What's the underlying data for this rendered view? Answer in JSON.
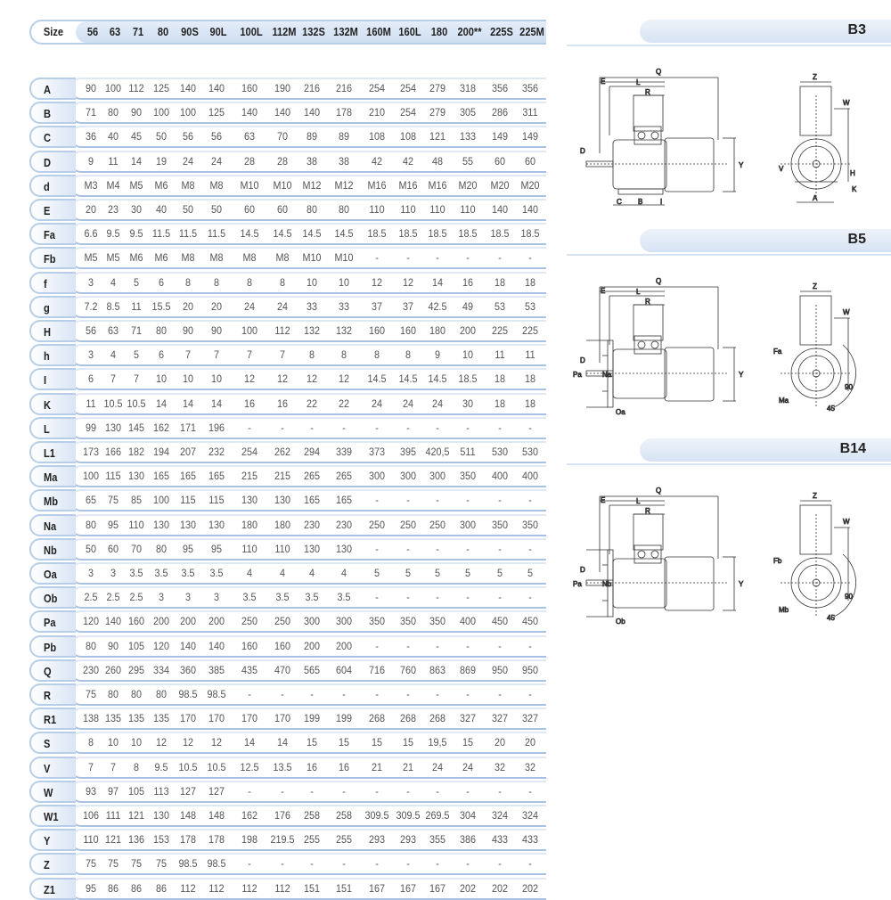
{
  "table": {
    "size_label": "Size",
    "sizes": [
      "56",
      "63",
      "71",
      "80",
      "90S",
      "90L",
      "100L",
      "112M",
      "132S",
      "132M",
      "160M",
      "160L",
      "180",
      "200**",
      "225S",
      "225M"
    ],
    "rows": [
      {
        "label": "A",
        "values": [
          "90",
          "100",
          "112",
          "125",
          "140",
          "140",
          "160",
          "190",
          "216",
          "216",
          "254",
          "254",
          "279",
          "318",
          "356",
          "356"
        ]
      },
      {
        "label": "B",
        "values": [
          "71",
          "80",
          "90",
          "100",
          "100",
          "125",
          "140",
          "140",
          "140",
          "178",
          "210",
          "254",
          "279",
          "305",
          "286",
          "311"
        ]
      },
      {
        "label": "C",
        "values": [
          "36",
          "40",
          "45",
          "50",
          "56",
          "56",
          "63",
          "70",
          "89",
          "89",
          "108",
          "108",
          "121",
          "133",
          "149",
          "149"
        ]
      },
      {
        "label": "D",
        "values": [
          "9",
          "11",
          "14",
          "19",
          "24",
          "24",
          "28",
          "28",
          "38",
          "38",
          "42",
          "42",
          "48",
          "55",
          "60",
          "60"
        ]
      },
      {
        "label": "d",
        "values": [
          "M3",
          "M4",
          "M5",
          "M6",
          "M8",
          "M8",
          "M10",
          "M10",
          "M12",
          "M12",
          "M16",
          "M16",
          "M16",
          "M20",
          "M20",
          "M20"
        ]
      },
      {
        "label": "E",
        "values": [
          "20",
          "23",
          "30",
          "40",
          "50",
          "50",
          "60",
          "60",
          "80",
          "80",
          "110",
          "110",
          "110",
          "110",
          "140",
          "140"
        ]
      },
      {
        "label": "Fa",
        "values": [
          "6.6",
          "9.5",
          "9.5",
          "11.5",
          "11.5",
          "11.5",
          "14.5",
          "14.5",
          "14.5",
          "14.5",
          "18.5",
          "18.5",
          "18.5",
          "18.5",
          "18.5",
          "18.5"
        ]
      },
      {
        "label": "Fb",
        "values": [
          "M5",
          "M5",
          "M6",
          "M6",
          "M8",
          "M8",
          "M8",
          "M8",
          "M10",
          "M10",
          "-",
          "-",
          "-",
          "-",
          "-",
          "-"
        ]
      },
      {
        "label": "f",
        "values": [
          "3",
          "4",
          "5",
          "6",
          "8",
          "8",
          "8",
          "8",
          "10",
          "10",
          "12",
          "12",
          "14",
          "16",
          "18",
          "18"
        ]
      },
      {
        "label": "g",
        "values": [
          "7.2",
          "8.5",
          "11",
          "15.5",
          "20",
          "20",
          "24",
          "24",
          "33",
          "33",
          "37",
          "37",
          "42.5",
          "49",
          "53",
          "53"
        ]
      },
      {
        "label": "H",
        "values": [
          "56",
          "63",
          "71",
          "80",
          "90",
          "90",
          "100",
          "112",
          "132",
          "132",
          "160",
          "160",
          "180",
          "200",
          "225",
          "225"
        ]
      },
      {
        "label": "h",
        "values": [
          "3",
          "4",
          "5",
          "6",
          "7",
          "7",
          "7",
          "7",
          "8",
          "8",
          "8",
          "8",
          "9",
          "10",
          "11",
          "11"
        ]
      },
      {
        "label": "I",
        "values": [
          "6",
          "7",
          "7",
          "10",
          "10",
          "10",
          "12",
          "12",
          "12",
          "12",
          "14.5",
          "14.5",
          "14.5",
          "18.5",
          "18",
          "18"
        ]
      },
      {
        "label": "K",
        "values": [
          "11",
          "10.5",
          "10.5",
          "14",
          "14",
          "14",
          "16",
          "16",
          "22",
          "22",
          "24",
          "24",
          "24",
          "30",
          "18",
          "18"
        ]
      },
      {
        "label": "L",
        "values": [
          "99",
          "130",
          "145",
          "162",
          "171",
          "196",
          "-",
          "-",
          "-",
          "-",
          "-",
          "-",
          "-",
          "-",
          "-",
          "-"
        ]
      },
      {
        "label": "L1",
        "values": [
          "173",
          "166",
          "182",
          "194",
          "207",
          "232",
          "254",
          "262",
          "294",
          "339",
          "373",
          "395",
          "420,5",
          "511",
          "530",
          "530"
        ]
      },
      {
        "label": "Ma",
        "values": [
          "100",
          "115",
          "130",
          "165",
          "165",
          "165",
          "215",
          "215",
          "265",
          "265",
          "300",
          "300",
          "300",
          "350",
          "400",
          "400"
        ]
      },
      {
        "label": "Mb",
        "values": [
          "65",
          "75",
          "85",
          "100",
          "115",
          "115",
          "130",
          "130",
          "165",
          "165",
          "-",
          "-",
          "-",
          "-",
          "-",
          "-"
        ]
      },
      {
        "label": "Na",
        "values": [
          "80",
          "95",
          "110",
          "130",
          "130",
          "130",
          "180",
          "180",
          "230",
          "230",
          "250",
          "250",
          "250",
          "300",
          "350",
          "350"
        ]
      },
      {
        "label": "Nb",
        "values": [
          "50",
          "60",
          "70",
          "80",
          "95",
          "95",
          "110",
          "110",
          "130",
          "130",
          "-",
          "-",
          "-",
          "-",
          "-",
          "-"
        ]
      },
      {
        "label": "Oa",
        "values": [
          "3",
          "3",
          "3.5",
          "3.5",
          "3.5",
          "3.5",
          "4",
          "4",
          "4",
          "4",
          "5",
          "5",
          "5",
          "5",
          "5",
          "5"
        ]
      },
      {
        "label": "Ob",
        "values": [
          "2.5",
          "2.5",
          "2.5",
          "3",
          "3",
          "3",
          "3.5",
          "3.5",
          "3.5",
          "3.5",
          "-",
          "-",
          "-",
          "-",
          "-",
          "-"
        ]
      },
      {
        "label": "Pa",
        "values": [
          "120",
          "140",
          "160",
          "200",
          "200",
          "200",
          "250",
          "250",
          "300",
          "300",
          "350",
          "350",
          "350",
          "400",
          "450",
          "450"
        ]
      },
      {
        "label": "Pb",
        "values": [
          "80",
          "90",
          "105",
          "120",
          "140",
          "140",
          "160",
          "160",
          "200",
          "200",
          "-",
          "-",
          "-",
          "-",
          "-",
          "-"
        ]
      },
      {
        "label": "Q",
        "values": [
          "230",
          "260",
          "295",
          "334",
          "360",
          "385",
          "435",
          "470",
          "565",
          "604",
          "716",
          "760",
          "863",
          "869",
          "950",
          "950"
        ]
      },
      {
        "label": "R",
        "values": [
          "75",
          "80",
          "80",
          "80",
          "98.5",
          "98.5",
          "-",
          "-",
          "-",
          "-",
          "-",
          "-",
          "-",
          "-",
          "-",
          "-"
        ]
      },
      {
        "label": "R1",
        "values": [
          "138",
          "135",
          "135",
          "135",
          "170",
          "170",
          "170",
          "170",
          "199",
          "199",
          "268",
          "268",
          "268",
          "327",
          "327",
          "327"
        ]
      },
      {
        "label": "S",
        "values": [
          "8",
          "10",
          "10",
          "12",
          "12",
          "12",
          "14",
          "14",
          "15",
          "15",
          "15",
          "15",
          "19,5",
          "15",
          "20",
          "20"
        ]
      },
      {
        "label": "V",
        "values": [
          "7",
          "7",
          "8",
          "9.5",
          "10.5",
          "10.5",
          "12.5",
          "13.5",
          "16",
          "16",
          "21",
          "21",
          "24",
          "24",
          "32",
          "32"
        ]
      },
      {
        "label": "W",
        "values": [
          "93",
          "97",
          "105",
          "113",
          "127",
          "127",
          "-",
          "-",
          "-",
          "-",
          "-",
          "-",
          "-",
          "-",
          "-",
          "-"
        ]
      },
      {
        "label": "W1",
        "values": [
          "106",
          "111",
          "121",
          "130",
          "148",
          "148",
          "162",
          "176",
          "258",
          "258",
          "309.5",
          "309.5",
          "269.5",
          "304",
          "324",
          "324"
        ]
      },
      {
        "label": "Y",
        "values": [
          "110",
          "121",
          "136",
          "153",
          "178",
          "178",
          "198",
          "219.5",
          "255",
          "255",
          "293",
          "293",
          "355",
          "386",
          "433",
          "433"
        ]
      },
      {
        "label": "Z",
        "values": [
          "75",
          "75",
          "75",
          "75",
          "98.5",
          "98.5",
          "-",
          "-",
          "-",
          "-",
          "-",
          "-",
          "-",
          "-",
          "-",
          "-"
        ]
      },
      {
        "label": "Z1",
        "values": [
          "95",
          "86",
          "86",
          "86",
          "112",
          "112",
          "112",
          "112",
          "151",
          "151",
          "167",
          "167",
          "167",
          "202",
          "202",
          "202"
        ]
      }
    ]
  },
  "diagrams": [
    {
      "title": "B3",
      "mount": "foot",
      "side_labels": {
        "Q": "Q",
        "E": "E",
        "L": "L",
        "R": "R",
        "D": "D",
        "Y": "Y",
        "C": "C",
        "B": "B",
        "I": "I",
        "flange1": "",
        "flange2": "",
        "flange3": ""
      },
      "front_labels": {
        "Z": "Z",
        "W": "W",
        "H": "H",
        "V": "V",
        "K": "K",
        "A": "A",
        "F": "",
        "M": "",
        "a90": "",
        "a45": ""
      }
    },
    {
      "title": "B5",
      "mount": "flange",
      "side_labels": {
        "Q": "Q",
        "E": "E",
        "L": "L",
        "R": "R",
        "D": "D",
        "Y": "Y",
        "C": "",
        "B": "",
        "I": "",
        "flange1": "Pa",
        "flange2": "Na",
        "flange3": "Oa"
      },
      "front_labels": {
        "Z": "Z",
        "W": "W",
        "H": "",
        "V": "",
        "K": "",
        "A": "",
        "F": "Fa",
        "M": "Ma",
        "a90": "90",
        "a45": "45"
      }
    },
    {
      "title": "B14",
      "mount": "face",
      "side_labels": {
        "Q": "Q",
        "E": "E",
        "L": "L",
        "R": "R",
        "D": "D",
        "Y": "Y",
        "C": "",
        "B": "",
        "I": "",
        "flange1": "Pa",
        "flange2": "Nb",
        "flange3": "Ob"
      },
      "front_labels": {
        "Z": "Z",
        "W": "W",
        "H": "",
        "V": "",
        "K": "",
        "A": "",
        "F": "Fb",
        "M": "Mb",
        "a90": "90",
        "a45": "45"
      }
    }
  ]
}
